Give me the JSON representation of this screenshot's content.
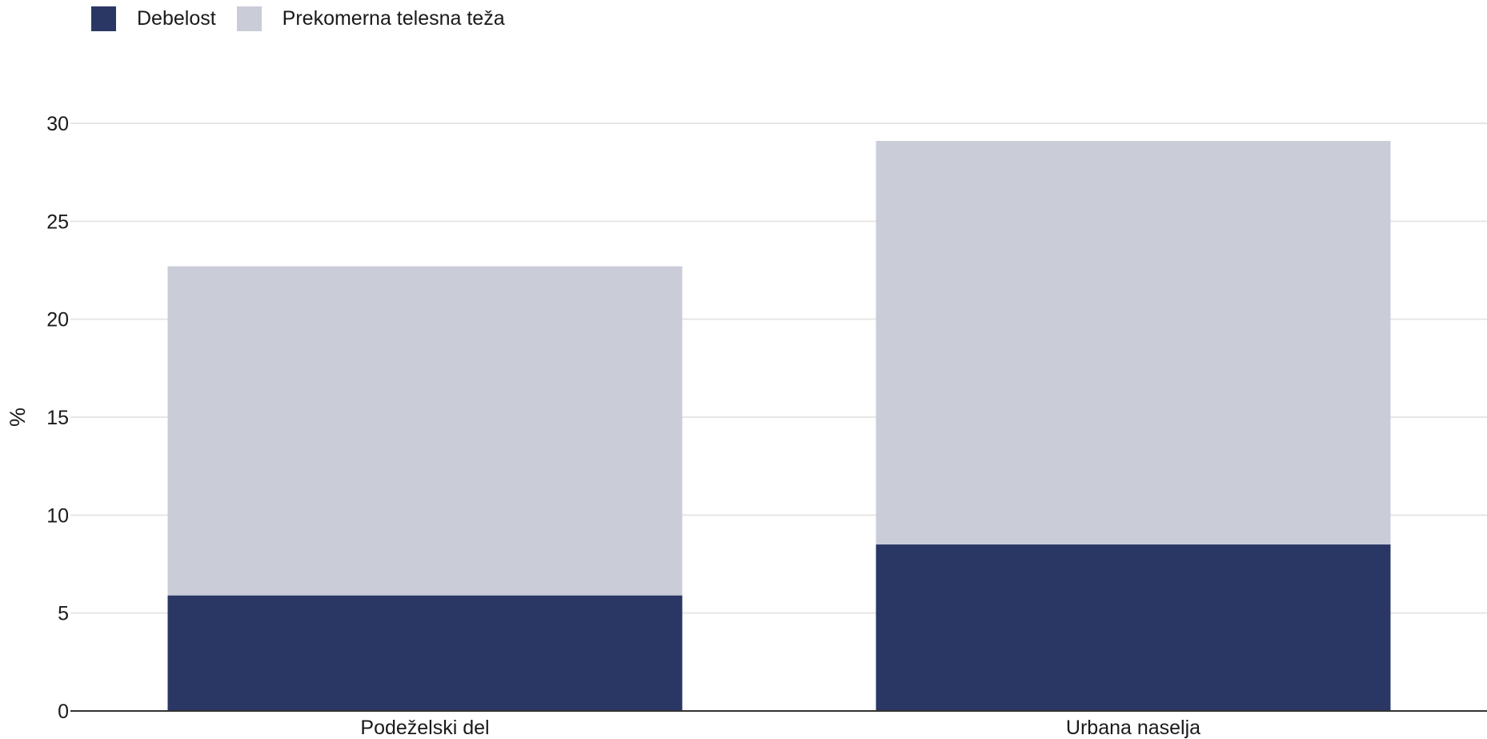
{
  "chart_data": {
    "type": "bar",
    "stacked": true,
    "categories": [
      "Podeželski del",
      "Urbana naselja"
    ],
    "series": [
      {
        "name": "Debelost",
        "color": "#2a3764",
        "values": [
          5.9,
          8.5
        ]
      },
      {
        "name": "Prekomerna telesna teža",
        "color": "#caccd8",
        "values": [
          16.8,
          20.6
        ]
      }
    ],
    "ylabel": "%",
    "ylim": [
      0,
      30
    ],
    "yticks": [
      0,
      5,
      10,
      15,
      20,
      25,
      30
    ],
    "grid": true,
    "legend_position": "top-left"
  }
}
